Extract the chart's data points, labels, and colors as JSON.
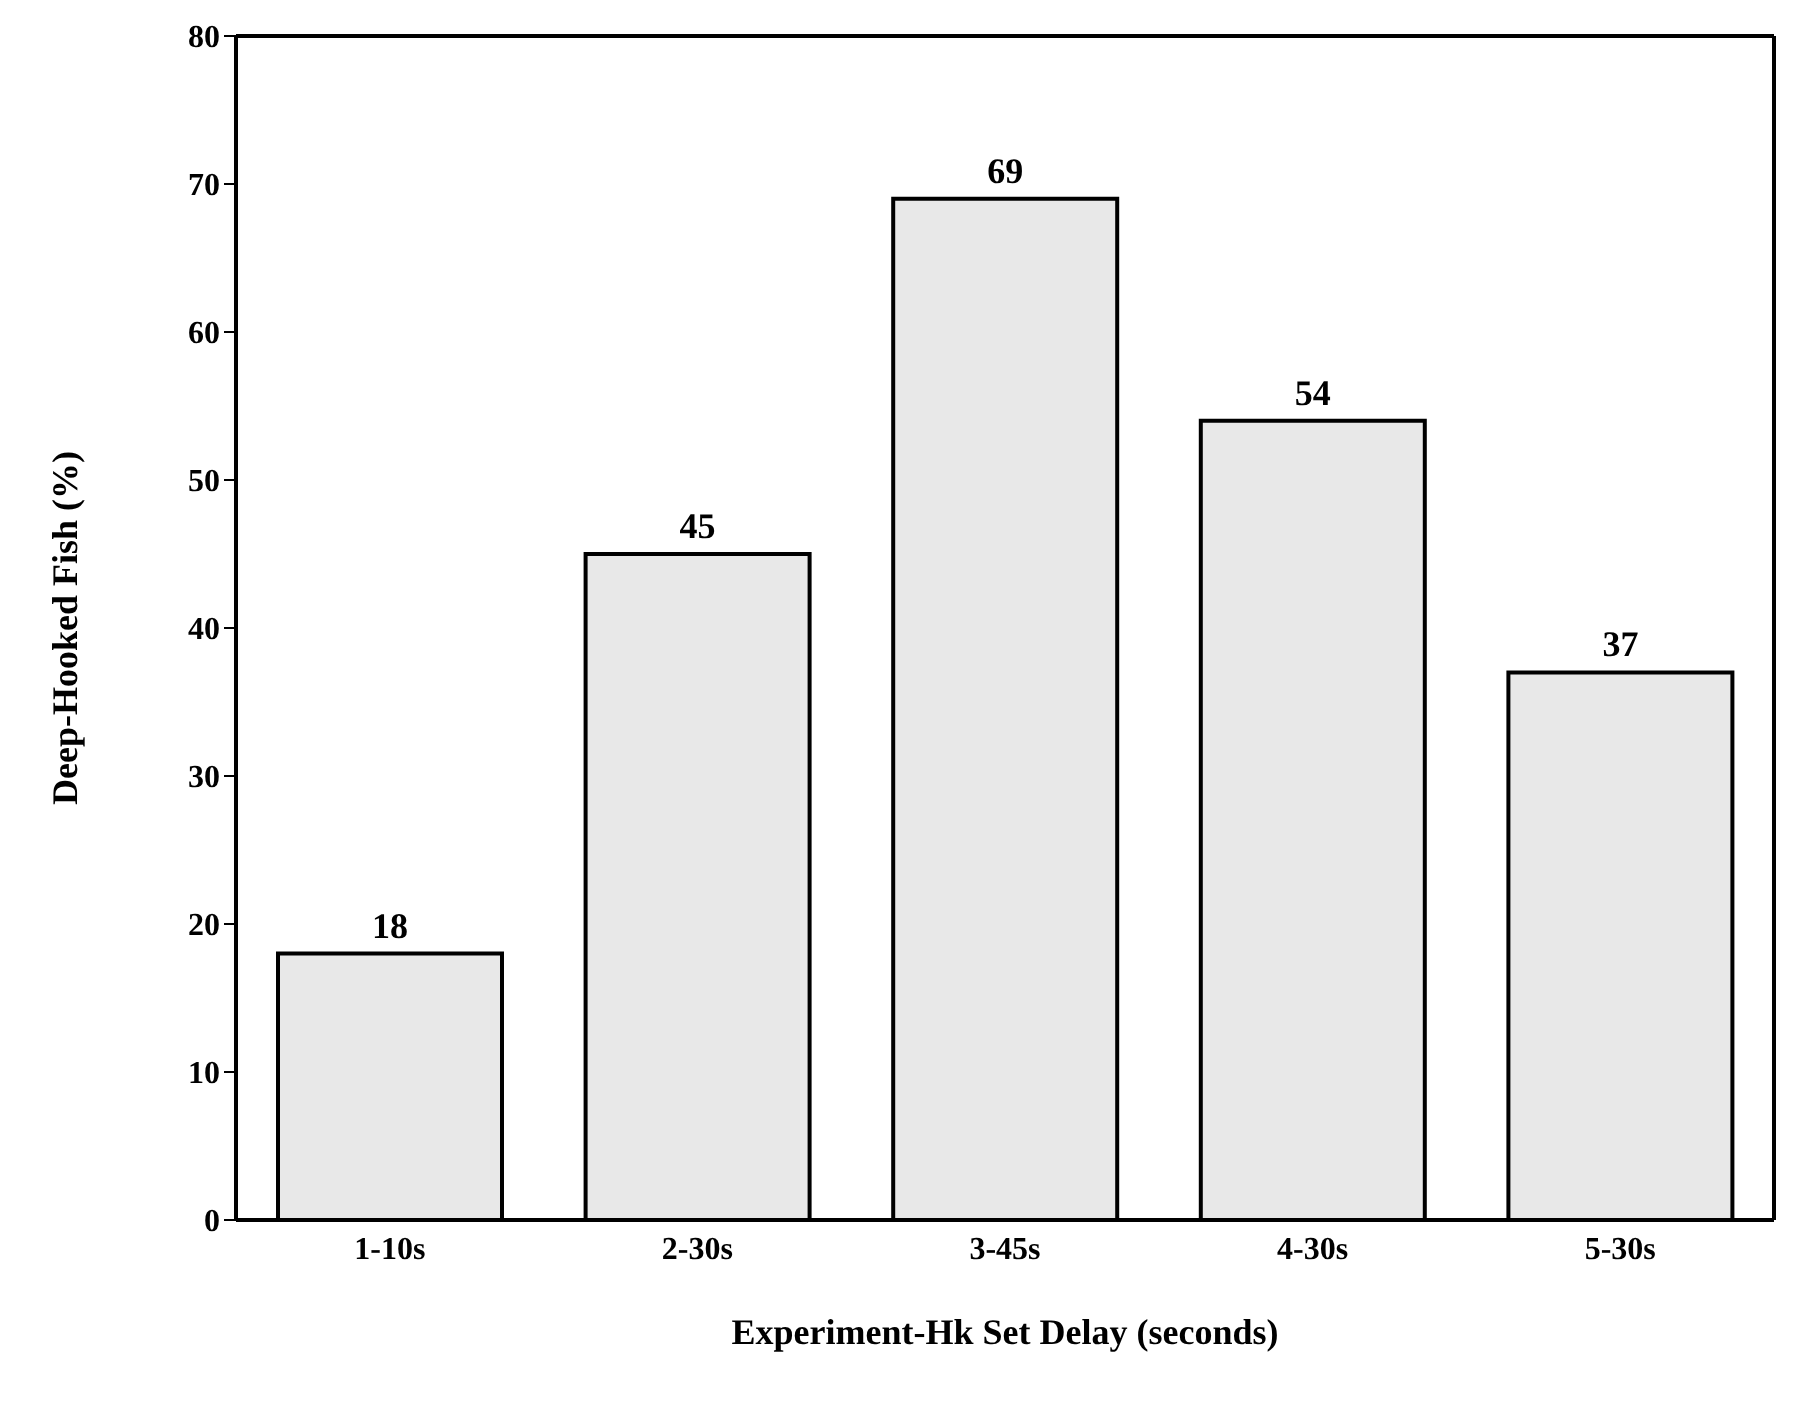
{
  "chart_data": {
    "type": "bar",
    "xlabel": "Experiment-Hk Set Delay (seconds)",
    "ylabel": "Deep-Hooked Fish (%)",
    "categories": [
      "1-10s",
      "2-30s",
      "3-45s",
      "4-30s",
      "5-30s"
    ],
    "values": [
      18,
      45,
      69,
      54,
      37
    ],
    "color": "#e8e8e8",
    "ylim": [
      0,
      80
    ],
    "yticks": [
      0,
      10,
      20,
      30,
      40,
      50,
      60,
      70,
      80
    ],
    "data_labels": true,
    "grid": false,
    "legend": false
  }
}
